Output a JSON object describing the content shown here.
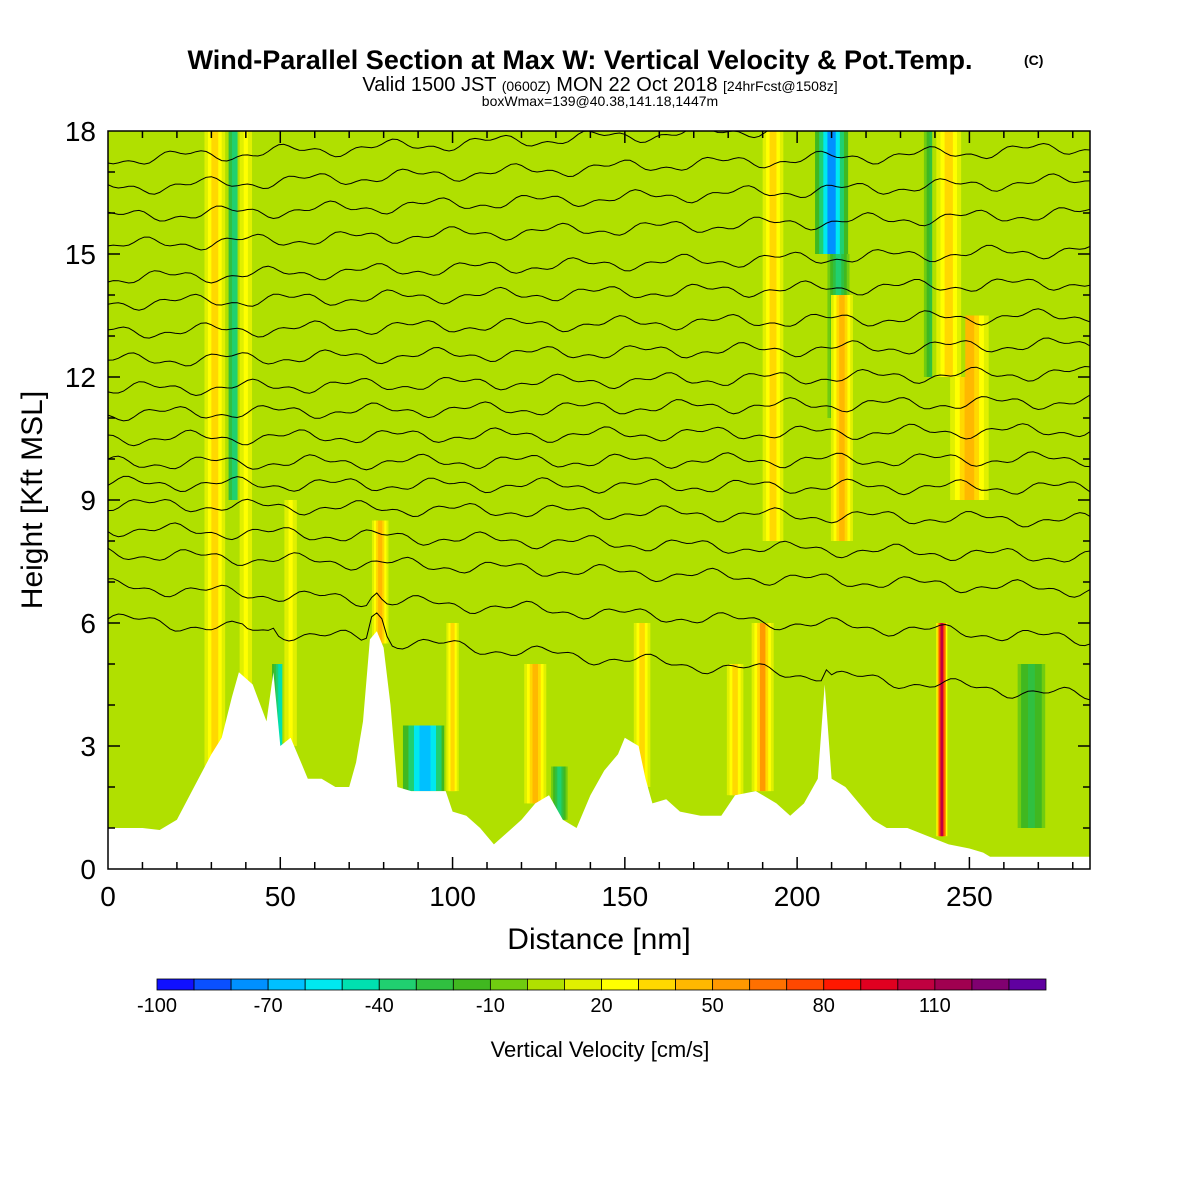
{
  "title": {
    "main": "Wind-Parallel Section at Max W: Vertical Velocity & Pot.Temp.",
    "main_mark": "(C)",
    "line2_a": "Valid 1500 JST ",
    "line2_b": "(0600Z)",
    "line2_c": " MON 22 Oct 2018 ",
    "line2_d": "[24hrFcst@1508z]",
    "line3": "boxWmax=139@40.38,141.18,1447m"
  },
  "chart_data": {
    "type": "heatmap",
    "xlabel": "Distance [nm]",
    "ylabel": "Height [Kft MSL]",
    "xlim": [
      0,
      285
    ],
    "ylim": [
      0,
      18
    ],
    "x_ticks": [
      0,
      50,
      100,
      150,
      200,
      250
    ],
    "y_ticks": [
      0,
      3,
      6,
      9,
      12,
      15,
      18
    ],
    "grid": false,
    "colorbar": {
      "title": "Vertical Velocity [cm/s]",
      "levels": [
        -100,
        -90,
        -80,
        -70,
        -60,
        -50,
        -40,
        -30,
        -20,
        -10,
        0,
        10,
        20,
        30,
        40,
        50,
        60,
        70,
        80,
        90,
        100,
        110,
        120,
        130
      ],
      "tick_labels": [
        "-100",
        "-70",
        "-40",
        "-10",
        "20",
        "50",
        "80",
        "110"
      ],
      "tick_values": [
        -100,
        -70,
        -40,
        -10,
        20,
        50,
        80,
        110
      ],
      "colors": [
        "#1010ff",
        "#0a50ff",
        "#0090ff",
        "#00c0ff",
        "#00e8f0",
        "#00e0b0",
        "#20d070",
        "#30c040",
        "#40b820",
        "#70cc10",
        "#b0e000",
        "#e0f000",
        "#ffff00",
        "#ffd800",
        "#ffb800",
        "#ff9800",
        "#ff7000",
        "#ff4800",
        "#ff1800",
        "#e00020",
        "#c00040",
        "#a00050",
        "#800070",
        "#6000a0"
      ]
    },
    "terrain": [
      {
        "x": 0,
        "h": 1.0
      },
      {
        "x": 5,
        "h": 1.0
      },
      {
        "x": 10,
        "h": 1.0
      },
      {
        "x": 15,
        "h": 0.95
      },
      {
        "x": 20,
        "h": 1.2
      },
      {
        "x": 25,
        "h": 2.0
      },
      {
        "x": 30,
        "h": 2.8
      },
      {
        "x": 33,
        "h": 3.2
      },
      {
        "x": 36,
        "h": 4.2
      },
      {
        "x": 38,
        "h": 4.8
      },
      {
        "x": 42,
        "h": 4.5
      },
      {
        "x": 46,
        "h": 3.6
      },
      {
        "x": 48,
        "h": 4.8
      },
      {
        "x": 50,
        "h": 3.0
      },
      {
        "x": 53,
        "h": 3.2
      },
      {
        "x": 56,
        "h": 2.6
      },
      {
        "x": 58,
        "h": 2.2
      },
      {
        "x": 62,
        "h": 2.2
      },
      {
        "x": 66,
        "h": 2.0
      },
      {
        "x": 70,
        "h": 2.0
      },
      {
        "x": 72,
        "h": 2.6
      },
      {
        "x": 74,
        "h": 3.6
      },
      {
        "x": 76,
        "h": 5.6
      },
      {
        "x": 78,
        "h": 5.8
      },
      {
        "x": 80,
        "h": 5.4
      },
      {
        "x": 82,
        "h": 4.0
      },
      {
        "x": 84,
        "h": 2.0
      },
      {
        "x": 88,
        "h": 1.9
      },
      {
        "x": 94,
        "h": 1.9
      },
      {
        "x": 98,
        "h": 1.9
      },
      {
        "x": 100,
        "h": 1.4
      },
      {
        "x": 104,
        "h": 1.3
      },
      {
        "x": 108,
        "h": 1.0
      },
      {
        "x": 112,
        "h": 0.6
      },
      {
        "x": 116,
        "h": 0.9
      },
      {
        "x": 120,
        "h": 1.2
      },
      {
        "x": 124,
        "h": 1.6
      },
      {
        "x": 128,
        "h": 1.8
      },
      {
        "x": 132,
        "h": 1.2
      },
      {
        "x": 136,
        "h": 1.0
      },
      {
        "x": 140,
        "h": 1.8
      },
      {
        "x": 144,
        "h": 2.4
      },
      {
        "x": 148,
        "h": 2.8
      },
      {
        "x": 150,
        "h": 3.2
      },
      {
        "x": 154,
        "h": 3.0
      },
      {
        "x": 156,
        "h": 2.2
      },
      {
        "x": 158,
        "h": 1.6
      },
      {
        "x": 162,
        "h": 1.7
      },
      {
        "x": 166,
        "h": 1.4
      },
      {
        "x": 172,
        "h": 1.3
      },
      {
        "x": 178,
        "h": 1.3
      },
      {
        "x": 182,
        "h": 1.8
      },
      {
        "x": 188,
        "h": 1.9
      },
      {
        "x": 194,
        "h": 1.6
      },
      {
        "x": 198,
        "h": 1.3
      },
      {
        "x": 202,
        "h": 1.6
      },
      {
        "x": 206,
        "h": 2.2
      },
      {
        "x": 208,
        "h": 4.5
      },
      {
        "x": 210,
        "h": 2.2
      },
      {
        "x": 214,
        "h": 2.0
      },
      {
        "x": 218,
        "h": 1.6
      },
      {
        "x": 222,
        "h": 1.2
      },
      {
        "x": 226,
        "h": 1.0
      },
      {
        "x": 232,
        "h": 1.0
      },
      {
        "x": 238,
        "h": 0.8
      },
      {
        "x": 244,
        "h": 0.6
      },
      {
        "x": 250,
        "h": 0.5
      },
      {
        "x": 254,
        "h": 0.4
      },
      {
        "x": 256,
        "h": 0.3
      },
      {
        "x": 262,
        "h": 0.3
      },
      {
        "x": 270,
        "h": 0.3
      },
      {
        "x": 278,
        "h": 0.3
      },
      {
        "x": 285,
        "h": 0.3
      }
    ],
    "updraft_columns": [
      {
        "x": 31,
        "w": 5,
        "v": 35,
        "bottom": 2.5,
        "top": 18
      },
      {
        "x": 40,
        "w": 3,
        "v": 20,
        "bottom": 4.5,
        "top": 18
      },
      {
        "x": 53,
        "w": 3,
        "v": 20,
        "bottom": 3.0,
        "top": 9
      },
      {
        "x": 79,
        "w": 3,
        "v": 40,
        "bottom": 5.5,
        "top": 8.5
      },
      {
        "x": 100,
        "w": 3,
        "v": 30,
        "bottom": 1.9,
        "top": 6
      },
      {
        "x": 124,
        "w": 4,
        "v": 40,
        "bottom": 1.6,
        "top": 5
      },
      {
        "x": 155,
        "w": 4,
        "v": 35,
        "bottom": 2.0,
        "top": 6
      },
      {
        "x": 182,
        "w": 4,
        "v": 30,
        "bottom": 1.8,
        "top": 5
      },
      {
        "x": 190,
        "w": 4,
        "v": 50,
        "bottom": 1.9,
        "top": 6
      },
      {
        "x": 193,
        "w": 5,
        "v": 30,
        "bottom": 8,
        "top": 18
      },
      {
        "x": 213,
        "w": 4,
        "v": 45,
        "bottom": 8,
        "top": 14
      },
      {
        "x": 242,
        "w": 2,
        "v": 100,
        "bottom": 0.8,
        "top": 6
      },
      {
        "x": 250,
        "w": 7,
        "v": 45,
        "bottom": 9,
        "top": 13.5
      },
      {
        "x": 244,
        "w": 6,
        "v": 30,
        "bottom": 12,
        "top": 18
      }
    ],
    "downdraft_columns": [
      {
        "x": 37,
        "w": 5,
        "v": -40,
        "bottom": 9,
        "top": 18
      },
      {
        "x": 50,
        "w": 3,
        "v": -45,
        "bottom": 3.0,
        "top": 5
      },
      {
        "x": 92,
        "w": 8,
        "v": -70,
        "bottom": 1.9,
        "top": 3.5
      },
      {
        "x": 131,
        "w": 3,
        "v": -40,
        "bottom": 1.2,
        "top": 2.5
      },
      {
        "x": 210,
        "w": 6,
        "v": -80,
        "bottom": 15,
        "top": 18
      },
      {
        "x": 212,
        "w": 4,
        "v": -40,
        "bottom": 11,
        "top": 15
      },
      {
        "x": 240,
        "w": 4,
        "v": -30,
        "bottom": 12,
        "top": 18
      },
      {
        "x": 268,
        "w": 5,
        "v": -25,
        "bottom": 1,
        "top": 5
      }
    ],
    "theta_contours": [
      {
        "z0": 6.1,
        "z1": 4.2
      },
      {
        "z0": 6.9,
        "z1": 5.6
      },
      {
        "z0": 7.7,
        "z1": 6.8
      },
      {
        "z0": 8.3,
        "z1": 7.6
      },
      {
        "z0": 8.9,
        "z1": 8.5
      },
      {
        "z0": 9.4,
        "z1": 9.3
      },
      {
        "z0": 9.9,
        "z1": 10.0
      },
      {
        "z0": 10.5,
        "z1": 10.7
      },
      {
        "z0": 11.1,
        "z1": 11.4
      },
      {
        "z0": 11.7,
        "z1": 12.1
      },
      {
        "z0": 12.4,
        "z1": 12.8
      },
      {
        "z0": 13.1,
        "z1": 13.5
      },
      {
        "z0": 13.8,
        "z1": 14.3
      },
      {
        "z0": 14.4,
        "z1": 15.1
      },
      {
        "z0": 15.2,
        "z1": 16.0
      },
      {
        "z0": 15.9,
        "z1": 16.8
      },
      {
        "z0": 16.6,
        "z1": 17.6
      },
      {
        "z0": 17.3,
        "z1": 18.4
      }
    ]
  }
}
